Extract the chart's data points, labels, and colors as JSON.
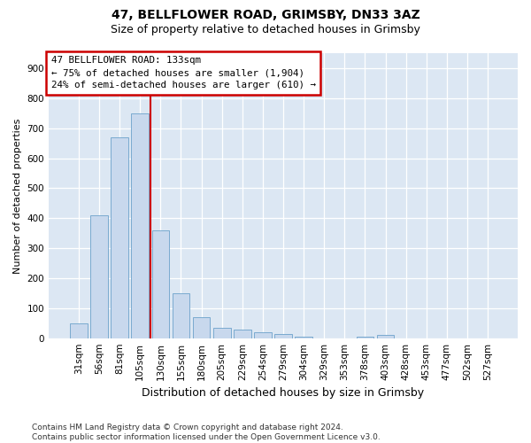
{
  "title_line1": "47, BELLFLOWER ROAD, GRIMSBY, DN33 3AZ",
  "title_line2": "Size of property relative to detached houses in Grimsby",
  "xlabel": "Distribution of detached houses by size in Grimsby",
  "ylabel": "Number of detached properties",
  "footnote": "Contains HM Land Registry data © Crown copyright and database right 2024.\nContains public sector information licensed under the Open Government Licence v3.0.",
  "bar_labels": [
    "31sqm",
    "56sqm",
    "81sqm",
    "105sqm",
    "130sqm",
    "155sqm",
    "180sqm",
    "205sqm",
    "229sqm",
    "254sqm",
    "279sqm",
    "304sqm",
    "329sqm",
    "353sqm",
    "378sqm",
    "403sqm",
    "428sqm",
    "453sqm",
    "477sqm",
    "502sqm",
    "527sqm"
  ],
  "bar_values": [
    50,
    410,
    670,
    750,
    360,
    150,
    70,
    35,
    30,
    20,
    15,
    5,
    0,
    0,
    5,
    10,
    0,
    0,
    0,
    0,
    0
  ],
  "bar_color": "#c8d8ed",
  "bar_edgecolor": "#7aaad0",
  "vline_x": 3.5,
  "vline_color": "#cc0000",
  "annotation_box_text": "47 BELLFLOWER ROAD: 133sqm\n← 75% of detached houses are smaller (1,904)\n24% of semi-detached houses are larger (610) →",
  "ylim": [
    0,
    950
  ],
  "yticks": [
    0,
    100,
    200,
    300,
    400,
    500,
    600,
    700,
    800,
    900
  ],
  "plot_bgcolor": "#dce7f3",
  "fig_bgcolor": "#ffffff",
  "grid_color": "#ffffff",
  "box_edgecolor": "#cc0000",
  "title1_fontsize": 10,
  "title2_fontsize": 9,
  "ylabel_fontsize": 8,
  "xlabel_fontsize": 9,
  "tick_fontsize": 7.5,
  "footnote_fontsize": 6.5
}
